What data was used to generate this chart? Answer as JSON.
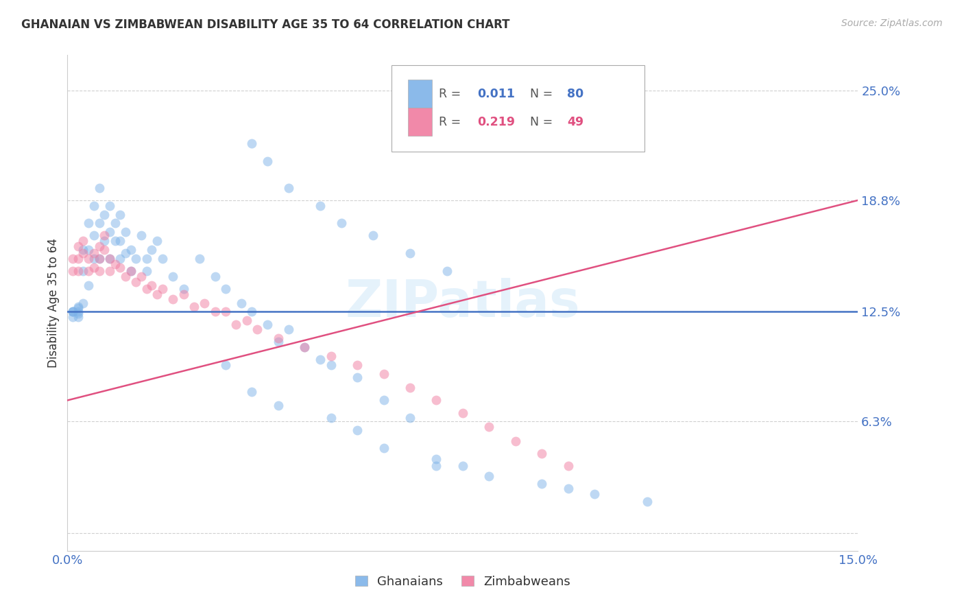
{
  "title": "GHANAIAN VS ZIMBABWEAN DISABILITY AGE 35 TO 64 CORRELATION CHART",
  "source": "Source: ZipAtlas.com",
  "ylabel": "Disability Age 35 to 64",
  "xlim": [
    0.0,
    0.15
  ],
  "ylim": [
    -0.01,
    0.27
  ],
  "yticks": [
    0.063,
    0.125,
    0.188,
    0.25
  ],
  "ytick_labels": [
    "6.3%",
    "12.5%",
    "18.8%",
    "25.0%"
  ],
  "xticks": [
    0.0,
    0.05,
    0.1,
    0.15
  ],
  "xtick_labels": [
    "0.0%",
    "",
    "",
    "15.0%"
  ],
  "background_color": "#ffffff",
  "watermark": "ZIPatlas",
  "ghanaian_color": "#7EB3E8",
  "zimbabwean_color": "#F07CA0",
  "ghanaian_line_color": "#4472C4",
  "zimbabwean_line_color": "#E05080",
  "legend_r_ghana": "0.011",
  "legend_n_ghana": "80",
  "legend_r_zim": "0.219",
  "legend_n_zim": "49",
  "ghanaian_x": [
    0.001,
    0.001,
    0.001,
    0.001,
    0.002,
    0.002,
    0.002,
    0.002,
    0.002,
    0.003,
    0.003,
    0.003,
    0.004,
    0.004,
    0.004,
    0.005,
    0.005,
    0.005,
    0.006,
    0.006,
    0.006,
    0.007,
    0.007,
    0.008,
    0.008,
    0.008,
    0.009,
    0.009,
    0.01,
    0.01,
    0.01,
    0.011,
    0.011,
    0.012,
    0.012,
    0.013,
    0.014,
    0.015,
    0.015,
    0.016,
    0.017,
    0.018,
    0.02,
    0.022,
    0.025,
    0.028,
    0.03,
    0.033,
    0.035,
    0.038,
    0.04,
    0.042,
    0.045,
    0.048,
    0.05,
    0.055,
    0.06,
    0.065,
    0.07,
    0.075,
    0.03,
    0.035,
    0.04,
    0.05,
    0.055,
    0.06,
    0.07,
    0.08,
    0.09,
    0.095,
    0.1,
    0.11,
    0.035,
    0.038,
    0.042,
    0.048,
    0.052,
    0.058,
    0.065,
    0.072
  ],
  "ghanaian_y": [
    0.125,
    0.125,
    0.125,
    0.122,
    0.127,
    0.124,
    0.128,
    0.125,
    0.122,
    0.16,
    0.148,
    0.13,
    0.175,
    0.16,
    0.14,
    0.185,
    0.168,
    0.155,
    0.195,
    0.175,
    0.155,
    0.18,
    0.165,
    0.185,
    0.17,
    0.155,
    0.175,
    0.165,
    0.18,
    0.165,
    0.155,
    0.17,
    0.158,
    0.16,
    0.148,
    0.155,
    0.168,
    0.155,
    0.148,
    0.16,
    0.165,
    0.155,
    0.145,
    0.138,
    0.155,
    0.145,
    0.138,
    0.13,
    0.125,
    0.118,
    0.108,
    0.115,
    0.105,
    0.098,
    0.095,
    0.088,
    0.075,
    0.065,
    0.042,
    0.038,
    0.095,
    0.08,
    0.072,
    0.065,
    0.058,
    0.048,
    0.038,
    0.032,
    0.028,
    0.025,
    0.022,
    0.018,
    0.22,
    0.21,
    0.195,
    0.185,
    0.175,
    0.168,
    0.158,
    0.148
  ],
  "zimbabwean_x": [
    0.001,
    0.001,
    0.002,
    0.002,
    0.002,
    0.003,
    0.003,
    0.004,
    0.004,
    0.005,
    0.005,
    0.006,
    0.006,
    0.006,
    0.007,
    0.007,
    0.008,
    0.008,
    0.009,
    0.01,
    0.011,
    0.012,
    0.013,
    0.014,
    0.015,
    0.016,
    0.017,
    0.018,
    0.02,
    0.022,
    0.024,
    0.026,
    0.028,
    0.03,
    0.032,
    0.034,
    0.036,
    0.04,
    0.045,
    0.05,
    0.055,
    0.06,
    0.065,
    0.07,
    0.075,
    0.08,
    0.085,
    0.09,
    0.095
  ],
  "zimbabwean_y": [
    0.155,
    0.148,
    0.162,
    0.155,
    0.148,
    0.165,
    0.158,
    0.155,
    0.148,
    0.158,
    0.15,
    0.162,
    0.155,
    0.148,
    0.168,
    0.16,
    0.155,
    0.148,
    0.152,
    0.15,
    0.145,
    0.148,
    0.142,
    0.145,
    0.138,
    0.14,
    0.135,
    0.138,
    0.132,
    0.135,
    0.128,
    0.13,
    0.125,
    0.125,
    0.118,
    0.12,
    0.115,
    0.11,
    0.105,
    0.1,
    0.095,
    0.09,
    0.082,
    0.075,
    0.068,
    0.06,
    0.052,
    0.045,
    0.038
  ],
  "marker_size": 100,
  "marker_alpha": 0.5,
  "line_width": 1.8
}
